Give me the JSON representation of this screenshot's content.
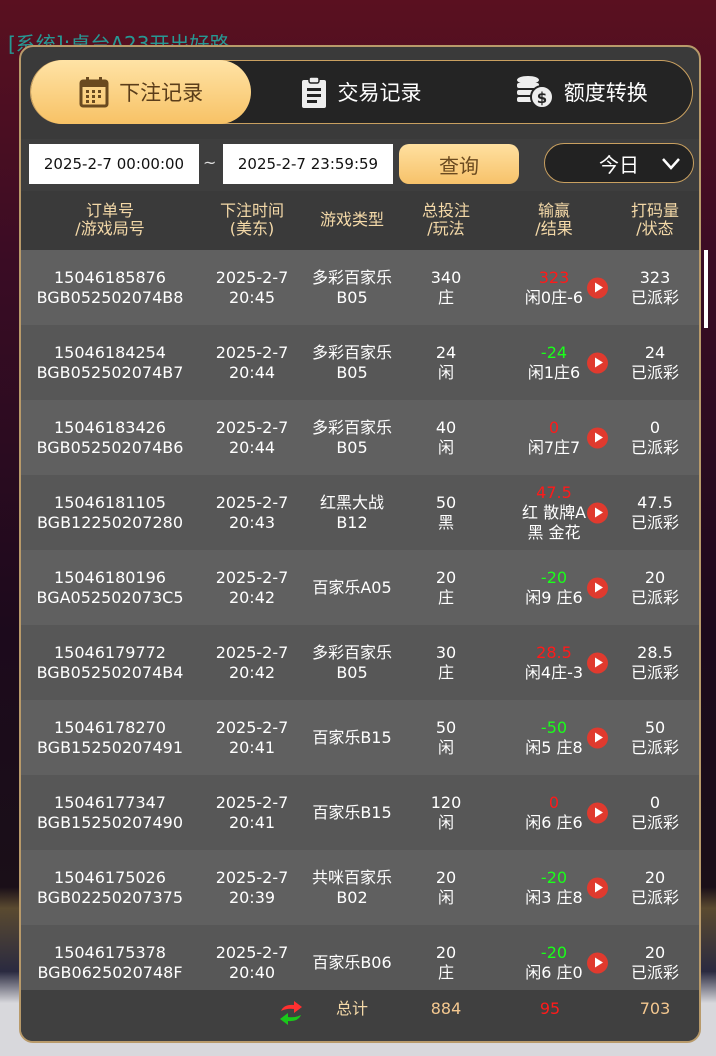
{
  "background": {
    "chat_text": "[系统]:桌台A23开出好路"
  },
  "tabs": [
    {
      "label": "下注记录",
      "icon": "calendar-icon",
      "active": true
    },
    {
      "label": "交易记录",
      "icon": "clipboard-icon",
      "active": false
    },
    {
      "label": "额度转换",
      "icon": "coins-dollar-icon",
      "active": false
    }
  ],
  "filter": {
    "start": "2025-2-7 00:00:00",
    "separator": "~",
    "end": "2025-2-7 23:59:59",
    "query_label": "查询",
    "range_selected": "今日"
  },
  "columns": [
    [
      "订单号",
      "/游戏局号"
    ],
    [
      "下注时间",
      "(美东)"
    ],
    [
      "游戏类型",
      ""
    ],
    [
      "总投注",
      "/玩法"
    ],
    [
      "输赢",
      "/结果"
    ],
    [
      "打码量",
      "/状态"
    ]
  ],
  "rows": [
    {
      "order": "15046185876",
      "round": "BGB052502074B8",
      "date": "2025-2-7",
      "time": "20:45",
      "game": [
        "多彩百家乐",
        "B05"
      ],
      "bet": "340",
      "play": "庄",
      "win": "323",
      "win_color": "red",
      "result": [
        "闲0庄-6"
      ],
      "valid": "323",
      "status": "已派彩"
    },
    {
      "order": "15046184254",
      "round": "BGB052502074B7",
      "date": "2025-2-7",
      "time": "20:44",
      "game": [
        "多彩百家乐",
        "B05"
      ],
      "bet": "24",
      "play": "闲",
      "win": "-24",
      "win_color": "green",
      "result": [
        "闲1庄6"
      ],
      "valid": "24",
      "status": "已派彩"
    },
    {
      "order": "15046183426",
      "round": "BGB052502074B6",
      "date": "2025-2-7",
      "time": "20:44",
      "game": [
        "多彩百家乐",
        "B05"
      ],
      "bet": "40",
      "play": "闲",
      "win": "0",
      "win_color": "red",
      "result": [
        "闲7庄7"
      ],
      "valid": "0",
      "status": "已派彩"
    },
    {
      "order": "15046181105",
      "round": "BGB12250207280",
      "date": "2025-2-7",
      "time": "20:43",
      "game": [
        "红黑大战",
        "B12"
      ],
      "bet": "50",
      "play": "黑",
      "win": "47.5",
      "win_color": "red",
      "result": [
        "红 散牌A",
        "黑 金花"
      ],
      "valid": "47.5",
      "status": "已派彩"
    },
    {
      "order": "15046180196",
      "round": "BGA052502073C5",
      "date": "2025-2-7",
      "time": "20:42",
      "game": [
        "百家乐A05"
      ],
      "bet": "20",
      "play": "庄",
      "win": "-20",
      "win_color": "green",
      "result": [
        "闲9 庄6"
      ],
      "valid": "20",
      "status": "已派彩"
    },
    {
      "order": "15046179772",
      "round": "BGB052502074B4",
      "date": "2025-2-7",
      "time": "20:42",
      "game": [
        "多彩百家乐",
        "B05"
      ],
      "bet": "30",
      "play": "庄",
      "win": "28.5",
      "win_color": "red",
      "result": [
        "闲4庄-3"
      ],
      "valid": "28.5",
      "status": "已派彩"
    },
    {
      "order": "15046178270",
      "round": "BGB15250207491",
      "date": "2025-2-7",
      "time": "20:41",
      "game": [
        "百家乐B15"
      ],
      "bet": "50",
      "play": "闲",
      "win": "-50",
      "win_color": "green",
      "result": [
        "闲5 庄8"
      ],
      "valid": "50",
      "status": "已派彩"
    },
    {
      "order": "15046177347",
      "round": "BGB15250207490",
      "date": "2025-2-7",
      "time": "20:41",
      "game": [
        "百家乐B15"
      ],
      "bet": "120",
      "play": "闲",
      "win": "0",
      "win_color": "red",
      "result": [
        "闲6 庄6"
      ],
      "valid": "0",
      "status": "已派彩"
    },
    {
      "order": "15046175026",
      "round": "BGB02250207375",
      "date": "2025-2-7",
      "time": "20:39",
      "game": [
        "共咪百家乐",
        "B02"
      ],
      "bet": "20",
      "play": "闲",
      "win": "-20",
      "win_color": "green",
      "result": [
        "闲3 庄8"
      ],
      "valid": "20",
      "status": "已派彩"
    },
    {
      "order": "15046175378",
      "round": "BGB0625020748F",
      "date": "2025-2-7",
      "time": "20:40",
      "game": [
        "百家乐B06"
      ],
      "bet": "20",
      "play": "庄",
      "win": "-20",
      "win_color": "green",
      "result": [
        "闲6 庄0"
      ],
      "valid": "20",
      "status": "已派彩"
    }
  ],
  "footer": {
    "label": "总计",
    "total_bet": "884",
    "total_win": "95",
    "total_valid": "703",
    "refresh_icon": "refresh-arrows-icon"
  },
  "colors": {
    "gold": "#f7c266",
    "red": "#ff1a1a",
    "green": "#1aff1a",
    "header_text": "#f4d9a8"
  }
}
